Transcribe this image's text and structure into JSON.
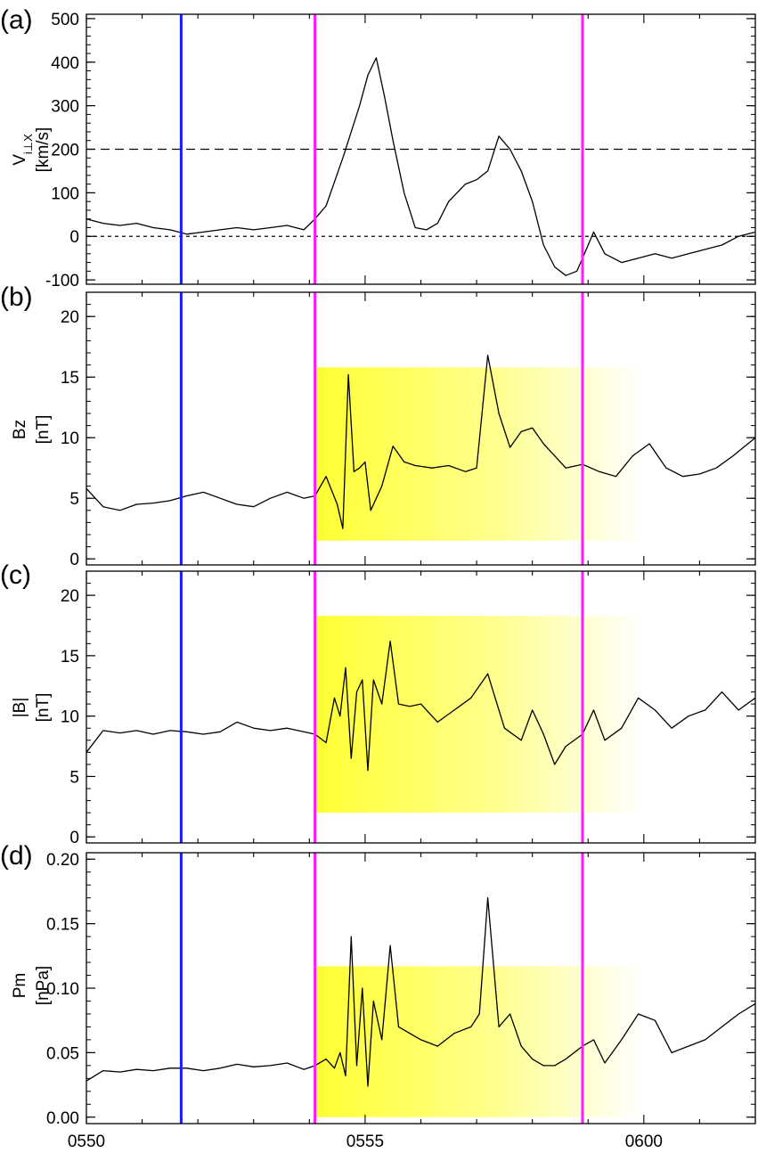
{
  "figure": {
    "shared_x_label": ""
  },
  "chart_data": [
    {
      "type": "line",
      "panel_label": "(a)",
      "title": "",
      "ylabel": "V",
      "ylabel_subscript": "i⊥X",
      "ylabel_unit": "[km/s]",
      "xlabel": "",
      "xlim": [
        0,
        12
      ],
      "ylim": [
        -110,
        510
      ],
      "yticks": [
        500,
        400,
        300,
        200,
        100,
        0,
        -100
      ],
      "xticks": [],
      "grid": false,
      "reference_lines": [
        {
          "y": 200,
          "style": "long-dashed"
        },
        {
          "y": 0,
          "style": "short-dashed"
        }
      ],
      "vertical_markers": [
        {
          "x": 1.7,
          "color": "#1a1aff"
        },
        {
          "x": 4.1,
          "color": "#ff1aff"
        },
        {
          "x": 8.9,
          "color": "#ff1aff"
        }
      ],
      "highlight": null,
      "series": [
        {
          "color": "#000000",
          "x": [
            0.0,
            0.3,
            0.6,
            0.9,
            1.2,
            1.5,
            1.8,
            2.1,
            2.4,
            2.7,
            3.0,
            3.3,
            3.6,
            3.9,
            4.1,
            4.3,
            4.6,
            4.9,
            5.05,
            5.2,
            5.35,
            5.5,
            5.7,
            5.9,
            6.1,
            6.3,
            6.5,
            6.8,
            7.0,
            7.2,
            7.4,
            7.6,
            7.8,
            8.0,
            8.2,
            8.4,
            8.6,
            8.8,
            8.9,
            9.1,
            9.3,
            9.6,
            9.9,
            10.2,
            10.5,
            10.8,
            11.1,
            11.4,
            11.7,
            12.0
          ],
          "values": [
            40,
            30,
            25,
            30,
            20,
            15,
            5,
            10,
            15,
            20,
            15,
            20,
            25,
            15,
            40,
            70,
            180,
            300,
            370,
            410,
            320,
            220,
            100,
            20,
            15,
            30,
            80,
            120,
            130,
            150,
            230,
            200,
            150,
            80,
            -20,
            -70,
            -90,
            -80,
            -50,
            10,
            -40,
            -60,
            -50,
            -40,
            -50,
            -40,
            -30,
            -20,
            0,
            10
          ]
        }
      ]
    },
    {
      "type": "line",
      "panel_label": "(b)",
      "title": "",
      "ylabel": "Bz",
      "ylabel_subscript": "",
      "ylabel_unit": "[nT]",
      "xlabel": "",
      "xlim": [
        0,
        12
      ],
      "ylim": [
        -0.5,
        22
      ],
      "yticks": [
        20,
        15,
        10,
        5,
        0
      ],
      "xticks": [],
      "grid": false,
      "reference_lines": [],
      "vertical_markers": [
        {
          "x": 1.7,
          "color": "#1a1aff"
        },
        {
          "x": 4.1,
          "color": "#ff1aff"
        },
        {
          "x": 8.9,
          "color": "#ff1aff"
        }
      ],
      "highlight": {
        "x_start": 4.1,
        "x_end": 10.0,
        "y_start": 1.5,
        "y_end": 15.8,
        "color": "#ffff33"
      },
      "series": [
        {
          "color": "#000000",
          "x": [
            0.0,
            0.3,
            0.6,
            0.9,
            1.2,
            1.5,
            1.8,
            2.1,
            2.4,
            2.7,
            3.0,
            3.3,
            3.6,
            3.9,
            4.1,
            4.3,
            4.5,
            4.6,
            4.7,
            4.8,
            4.9,
            5.0,
            5.1,
            5.3,
            5.5,
            5.7,
            5.9,
            6.2,
            6.5,
            6.8,
            7.0,
            7.2,
            7.4,
            7.6,
            7.8,
            8.0,
            8.2,
            8.4,
            8.6,
            8.9,
            9.2,
            9.5,
            9.8,
            10.1,
            10.4,
            10.7,
            11.0,
            11.3,
            11.6,
            12.0
          ],
          "values": [
            5.8,
            4.3,
            4.0,
            4.5,
            4.6,
            4.8,
            5.2,
            5.5,
            5.0,
            4.5,
            4.3,
            5.0,
            5.5,
            5.0,
            5.2,
            6.8,
            4.5,
            2.5,
            15.2,
            7.2,
            7.5,
            8.0,
            4.0,
            6.0,
            9.3,
            8.0,
            7.7,
            7.5,
            7.7,
            7.2,
            7.5,
            16.8,
            12.0,
            9.2,
            10.5,
            10.8,
            9.5,
            8.5,
            7.5,
            7.8,
            7.2,
            6.8,
            8.5,
            9.5,
            7.5,
            6.8,
            7.0,
            7.5,
            8.5,
            10.0
          ]
        }
      ]
    },
    {
      "type": "line",
      "panel_label": "(c)",
      "title": "",
      "ylabel": "|B|",
      "ylabel_subscript": "",
      "ylabel_unit": "[nT]",
      "xlabel": "",
      "xlim": [
        0,
        12
      ],
      "ylim": [
        -0.5,
        22
      ],
      "yticks": [
        20,
        15,
        10,
        5,
        0
      ],
      "xticks": [],
      "grid": false,
      "reference_lines": [],
      "vertical_markers": [
        {
          "x": 1.7,
          "color": "#1a1aff"
        },
        {
          "x": 4.1,
          "color": "#ff1aff"
        },
        {
          "x": 8.9,
          "color": "#ff1aff"
        }
      ],
      "highlight": {
        "x_start": 4.1,
        "x_end": 10.0,
        "y_start": 2.0,
        "y_end": 18.3,
        "color": "#ffff33"
      },
      "series": [
        {
          "color": "#000000",
          "x": [
            0.0,
            0.3,
            0.6,
            0.9,
            1.2,
            1.5,
            1.8,
            2.1,
            2.4,
            2.7,
            3.0,
            3.3,
            3.6,
            3.9,
            4.1,
            4.3,
            4.45,
            4.55,
            4.65,
            4.75,
            4.85,
            4.95,
            5.05,
            5.15,
            5.3,
            5.45,
            5.6,
            5.8,
            6.0,
            6.3,
            6.6,
            6.9,
            7.2,
            7.5,
            7.8,
            8.0,
            8.2,
            8.4,
            8.6,
            8.9,
            9.1,
            9.3,
            9.6,
            9.9,
            10.2,
            10.5,
            10.8,
            11.1,
            11.4,
            11.7,
            12.0
          ],
          "values": [
            7.0,
            8.8,
            8.6,
            8.8,
            8.5,
            8.8,
            8.7,
            8.5,
            8.7,
            9.5,
            9.0,
            8.8,
            9.0,
            8.7,
            8.5,
            7.8,
            11.5,
            10.0,
            14.0,
            6.5,
            12.0,
            13.0,
            5.5,
            13.0,
            11.0,
            16.2,
            11.0,
            10.8,
            11.0,
            9.5,
            10.5,
            11.5,
            13.5,
            9.0,
            8.0,
            10.5,
            8.5,
            6.0,
            7.5,
            8.5,
            10.5,
            8.0,
            9.0,
            11.5,
            10.5,
            9.0,
            10.0,
            10.5,
            12.0,
            10.5,
            11.5
          ]
        }
      ]
    },
    {
      "type": "line",
      "panel_label": "(d)",
      "title": "",
      "ylabel": "Pm",
      "ylabel_subscript": "",
      "ylabel_unit": "[nPa]",
      "xlabel": "",
      "xlim": [
        0,
        12
      ],
      "ylim": [
        -0.005,
        0.205
      ],
      "yticks": [
        0.2,
        0.15,
        0.1,
        0.05,
        0.0
      ],
      "ytick_labels": [
        "0.20",
        "0.15",
        "0.10",
        "0.05",
        "0.00"
      ],
      "xticks": [
        0,
        5,
        10
      ],
      "xtick_labels": [
        "0550",
        "0555",
        "0600"
      ],
      "grid": false,
      "reference_lines": [],
      "vertical_markers": [
        {
          "x": 1.7,
          "color": "#1a1aff"
        },
        {
          "x": 4.1,
          "color": "#ff1aff"
        },
        {
          "x": 8.9,
          "color": "#ff1aff"
        }
      ],
      "highlight": {
        "x_start": 4.1,
        "x_end": 10.0,
        "y_start": 0.0,
        "y_end": 0.117,
        "color": "#ffff33"
      },
      "series": [
        {
          "color": "#000000",
          "x": [
            0.0,
            0.3,
            0.6,
            0.9,
            1.2,
            1.5,
            1.8,
            2.1,
            2.4,
            2.7,
            3.0,
            3.3,
            3.6,
            3.9,
            4.1,
            4.3,
            4.45,
            4.55,
            4.65,
            4.75,
            4.85,
            4.95,
            5.05,
            5.15,
            5.3,
            5.45,
            5.6,
            5.8,
            6.0,
            6.3,
            6.6,
            6.9,
            7.05,
            7.2,
            7.4,
            7.6,
            7.8,
            8.0,
            8.2,
            8.4,
            8.6,
            8.9,
            9.1,
            9.3,
            9.6,
            9.9,
            10.2,
            10.5,
            10.8,
            11.1,
            11.4,
            11.7,
            12.0
          ],
          "values": [
            0.028,
            0.036,
            0.035,
            0.037,
            0.036,
            0.038,
            0.038,
            0.036,
            0.038,
            0.041,
            0.039,
            0.04,
            0.042,
            0.037,
            0.04,
            0.045,
            0.038,
            0.05,
            0.032,
            0.14,
            0.04,
            0.1,
            0.024,
            0.09,
            0.06,
            0.133,
            0.07,
            0.065,
            0.06,
            0.055,
            0.065,
            0.07,
            0.08,
            0.17,
            0.07,
            0.08,
            0.055,
            0.045,
            0.04,
            0.04,
            0.045,
            0.055,
            0.06,
            0.042,
            0.06,
            0.08,
            0.075,
            0.05,
            0.055,
            0.06,
            0.07,
            0.08,
            0.088
          ]
        }
      ]
    }
  ]
}
